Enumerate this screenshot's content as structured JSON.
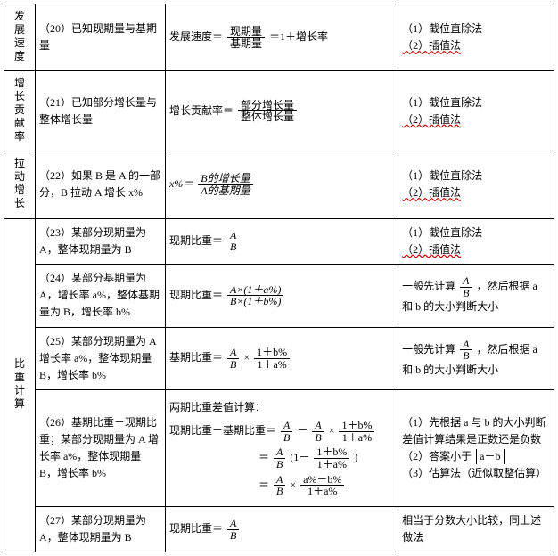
{
  "categories": {
    "c1": "发展速度",
    "c2": "增长贡献率",
    "c3": "拉动增长",
    "c4": "比重计算"
  },
  "rows": {
    "r20": {
      "cond": "（20）已知现期量与基期量",
      "form": {
        "lead": "发展速度＝",
        "num": "现期量",
        "den": "基期量",
        "tail": "＝1＋增长率"
      },
      "meth1": "（1）截位直除法",
      "meth2": "（2）插值法"
    },
    "r21": {
      "cond": "（21）已知部分增长量与整体增长量",
      "form": {
        "lead": "增长贡献率＝",
        "num": "部分增长量",
        "den": "整体增长量"
      },
      "meth1": "（1）截位直除法",
      "meth2": "（2）插值法"
    },
    "r22": {
      "cond": "（22）如果 B 是 A 的一部分，B 拉动 A 增长 x%",
      "form": {
        "lead": "x%＝",
        "num": "B的增长量",
        "den": "A的基期量"
      },
      "meth1": "（1）截位直除法",
      "meth2": "（2）插值法"
    },
    "r23": {
      "cond": "（23）某部分现期量为 A，整体现期量为 B",
      "form": {
        "lead": "现期比重＝",
        "num": "A",
        "den": "B"
      },
      "meth1": "（1）截位直除法",
      "meth2": "（2）插值法"
    },
    "r24": {
      "cond": "（24）某部分基期量为 A，增长率 a%，整体基期量为 B，增长率 b%",
      "form": {
        "lead": "现期比重＝",
        "num": "A×(1＋a%)",
        "den": "B×(1＋b%)"
      },
      "meth": {
        "pre": "一般先计算",
        "num": "A",
        "den": "B",
        "mid": "，然后根据 a 和 b 的大小判断大小"
      }
    },
    "r25": {
      "cond": "（25）某部分现期量为 A 增长率 a%，整体现期量 B，增长率 b%",
      "form": {
        "lead": "基期比重＝",
        "n1": "A",
        "d1": "B",
        "times": "×",
        "n2": "1＋b%",
        "d2": "1＋a%"
      },
      "meth": {
        "pre": "一般先计算",
        "num": "A",
        "den": "B",
        "mid": "，然后根据 a 和 b 的大小判断大小"
      }
    },
    "r26": {
      "cond": "（26）基期比重－现期比重；某部分现期量为 A 增长率 a%，整体现期量 B，增长率 b%",
      "title": "两期比重差值计算：",
      "line1": {
        "lead": "现期比重－基期比重＝",
        "n1": "A",
        "d1": "B",
        "minus": "－",
        "n2": "A",
        "d2": "B",
        "times": "×",
        "n3": "1＋b%",
        "d3": "1＋a%"
      },
      "line2": {
        "lead": "＝",
        "n1": "A",
        "d1": "B",
        "open": "(1－",
        "n2": "1＋b%",
        "d2": "1＋a%",
        "close": ")"
      },
      "line3": {
        "lead": "＝",
        "n1": "A",
        "d1": "B",
        "times": "×",
        "n2": "a%－b%",
        "d2": "1＋a%"
      },
      "meth1_l1": "（1）先根据 a 与 b 的大小判断差值计算结果是正数还是负数",
      "meth2_pre": "（2）答案小于",
      "meth2_abs": "a－b",
      "meth3": "（3）估算法（近似取整估算）"
    },
    "r27": {
      "cond": "（27）某部分现期量为 A，整体现期量为 B",
      "form": {
        "lead": "现期比重＝",
        "num": "A",
        "den": "B"
      },
      "meth": "相当于分数大小比较，同上述做法"
    }
  }
}
